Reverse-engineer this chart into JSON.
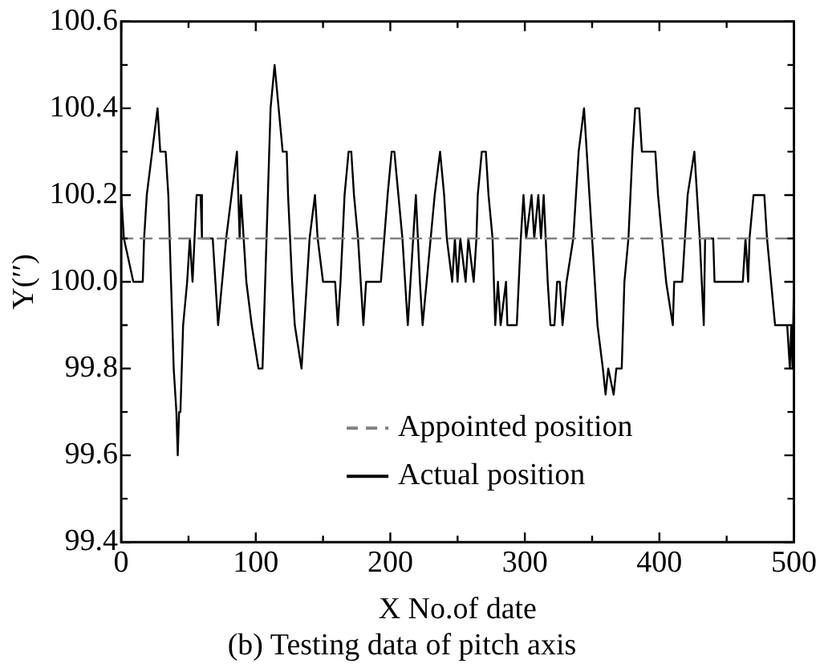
{
  "chart_data": {
    "type": "line",
    "title": "(b) Testing data of pitch axis",
    "xlabel": "X No.of date",
    "ylabel": "Y(′′)",
    "xlim": [
      0,
      500
    ],
    "xticks": [
      0,
      {
        "value": 50,
        "label": null
      },
      100,
      {
        "value": 150,
        "label": null
      },
      200,
      {
        "value": 250,
        "label": null
      },
      300,
      {
        "value": 350,
        "label": null
      },
      400,
      {
        "value": 450,
        "label": null
      },
      500
    ],
    "ylim": [
      99.4,
      100.6
    ],
    "yticks": [
      {
        "value": 99.4,
        "label": "99.4"
      },
      {
        "value": 99.5,
        "label": null
      },
      {
        "value": 99.6,
        "label": "99.6"
      },
      {
        "value": 99.7,
        "label": null
      },
      {
        "value": 99.8,
        "label": "99.8"
      },
      {
        "value": 99.9,
        "label": null
      },
      {
        "value": 100.0,
        "label": "100.0"
      },
      {
        "value": 100.1,
        "label": null
      },
      {
        "value": 100.2,
        "label": "100.2"
      },
      {
        "value": 100.3,
        "label": null
      },
      {
        "value": 100.4,
        "label": "100.4"
      },
      {
        "value": 100.5,
        "label": null
      },
      {
        "value": 100.6,
        "label": "100.6"
      }
    ],
    "grid": false,
    "legend": "bottom",
    "marker": "none",
    "series": [
      {
        "name": "Appointed position",
        "color": "#808080",
        "line_style": "dashed",
        "x": [
          0,
          500
        ],
        "values": [
          100.1,
          100.1
        ]
      },
      {
        "name": "Actual position",
        "color": "#000000",
        "line_style": "solid",
        "x": [
          0,
          2,
          9,
          16,
          17,
          19,
          23,
          27,
          29,
          33,
          35,
          37,
          39,
          41,
          42,
          43,
          44,
          46,
          49,
          51,
          53,
          56,
          59,
          60,
          68,
          72,
          75,
          78,
          82,
          86,
          88,
          89,
          93,
          97,
          102,
          105,
          106,
          108,
          111,
          114,
          115,
          117,
          120,
          123,
          124,
          127,
          129,
          134,
          136,
          140,
          144,
          146,
          150,
          159,
          161,
          163,
          166,
          169,
          171,
          173,
          176,
          180,
          182,
          193,
          198,
          201,
          203,
          206,
          209,
          213,
          215,
          219,
          222,
          224,
          227,
          233,
          237,
          240,
          242,
          246,
          248,
          250,
          252,
          256,
          258,
          262,
          264,
          265,
          268,
          271,
          273,
          276,
          278,
          280,
          282,
          286,
          287,
          294,
          297,
          299,
          301,
          305,
          307,
          310,
          312,
          314,
          317,
          319,
          322,
          324,
          326,
          328,
          331,
          336,
          340,
          344,
          346,
          348,
          352,
          354,
          358,
          360,
          362,
          366,
          368,
          372,
          374,
          377,
          380,
          382,
          385,
          387,
          397,
          399,
          402,
          405,
          410,
          411,
          417,
          421,
          426,
          428,
          430,
          433,
          434,
          440,
          441,
          462,
          464,
          466,
          467,
          470,
          478,
          480,
          483,
          486,
          495,
          497,
          498,
          499,
          500
        ],
        "values": [
          100.2,
          100.1,
          100.0,
          100.0,
          100.1,
          100.2,
          100.3,
          100.4,
          100.3,
          100.3,
          100.2,
          100.0,
          99.8,
          99.7,
          99.6,
          99.7,
          99.7,
          99.9,
          100.0,
          100.1,
          100.0,
          100.2,
          100.2,
          100.1,
          100.1,
          99.9,
          100.0,
          100.1,
          100.2,
          100.3,
          100.1,
          100.2,
          100.0,
          99.9,
          99.8,
          99.8,
          99.9,
          100.1,
          100.4,
          100.5,
          100.5,
          100.4,
          100.3,
          100.3,
          100.2,
          100.0,
          99.9,
          99.8,
          99.9,
          100.1,
          100.2,
          100.1,
          100.0,
          100.0,
          99.9,
          100.0,
          100.2,
          100.3,
          100.3,
          100.2,
          100.1,
          99.9,
          100.0,
          100.0,
          100.2,
          100.3,
          100.3,
          100.2,
          100.1,
          99.9,
          100.0,
          100.2,
          100.0,
          99.9,
          100.0,
          100.2,
          100.3,
          100.2,
          100.1,
          100.0,
          100.1,
          100.0,
          100.1,
          100.0,
          100.1,
          100.0,
          100.1,
          100.2,
          100.3,
          100.3,
          100.2,
          100.1,
          99.9,
          100.0,
          99.9,
          100.0,
          99.9,
          99.9,
          100.1,
          100.2,
          100.1,
          100.2,
          100.1,
          100.2,
          100.1,
          100.2,
          100.0,
          99.9,
          99.9,
          100.0,
          100.0,
          99.9,
          100.0,
          100.1,
          100.3,
          100.4,
          100.3,
          100.2,
          100.0,
          99.9,
          99.8,
          99.74,
          99.8,
          99.74,
          99.8,
          99.8,
          100.0,
          100.1,
          100.3,
          100.4,
          100.4,
          100.3,
          100.3,
          100.2,
          100.1,
          100.0,
          99.9,
          100.0,
          100.0,
          100.2,
          100.3,
          100.2,
          100.1,
          99.9,
          100.1,
          100.1,
          100.0,
          100.0,
          100.1,
          100.0,
          100.1,
          100.2,
          100.2,
          100.1,
          100.0,
          99.9,
          99.9,
          99.8,
          99.9,
          99.8,
          100.0
        ]
      }
    ]
  }
}
